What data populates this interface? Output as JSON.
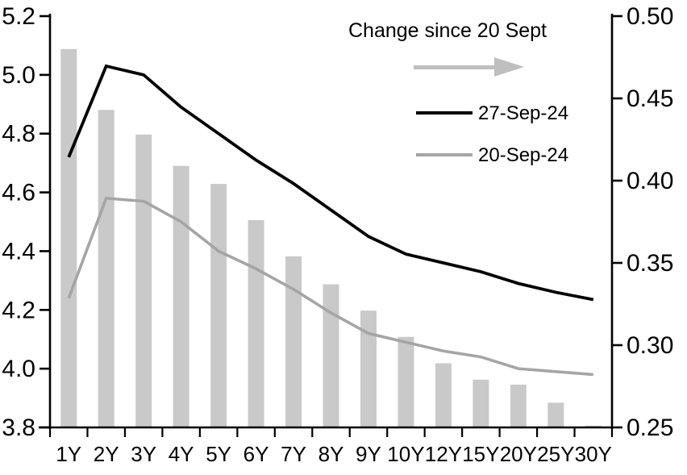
{
  "chart_data": {
    "type": "combo-bar-line",
    "title": "",
    "categories": [
      "1Y",
      "2Y",
      "3Y",
      "4Y",
      "5Y",
      "6Y",
      "7Y",
      "8Y",
      "9Y",
      "10Y",
      "12Y",
      "15Y",
      "20Y",
      "25Y",
      "30Y"
    ],
    "series": [
      {
        "name": "Change since 20 Sept",
        "type": "bar",
        "axis": "right",
        "color": "#c9c9c9",
        "values": [
          0.48,
          0.443,
          0.428,
          0.409,
          0.398,
          0.376,
          0.354,
          0.337,
          0.321,
          0.305,
          0.289,
          0.279,
          0.276,
          0.265,
          0.251
        ]
      },
      {
        "name": "27-Sep-24",
        "type": "line",
        "axis": "left",
        "color": "#000000",
        "values": [
          4.72,
          5.03,
          5.0,
          4.89,
          4.8,
          4.71,
          4.63,
          4.54,
          4.45,
          4.39,
          4.36,
          4.33,
          4.29,
          4.26,
          4.235
        ]
      },
      {
        "name": "20-Sep-24",
        "type": "line",
        "axis": "left",
        "color": "#a5a5a5",
        "values": [
          4.24,
          4.58,
          4.57,
          4.5,
          4.4,
          4.34,
          4.27,
          4.19,
          4.12,
          4.09,
          4.06,
          4.04,
          4.0,
          3.99,
          3.98
        ]
      }
    ],
    "left_axis": {
      "min": 3.8,
      "max": 5.2,
      "step": 0.2,
      "tick_labels": [
        "5.2",
        "5.0",
        "4.8",
        "4.6",
        "4.4",
        "4.2",
        "4.0",
        "3.8"
      ]
    },
    "right_axis": {
      "min": 0.25,
      "max": 0.5,
      "step": 0.05,
      "tick_labels": [
        "0.50",
        "0.45",
        "0.40",
        "0.35",
        "0.30",
        "0.25"
      ]
    },
    "grid": false,
    "legend_position": "inside-top-right",
    "legend": {
      "arrow_color": "#bfbfbf",
      "axis_color": "#000000"
    }
  }
}
